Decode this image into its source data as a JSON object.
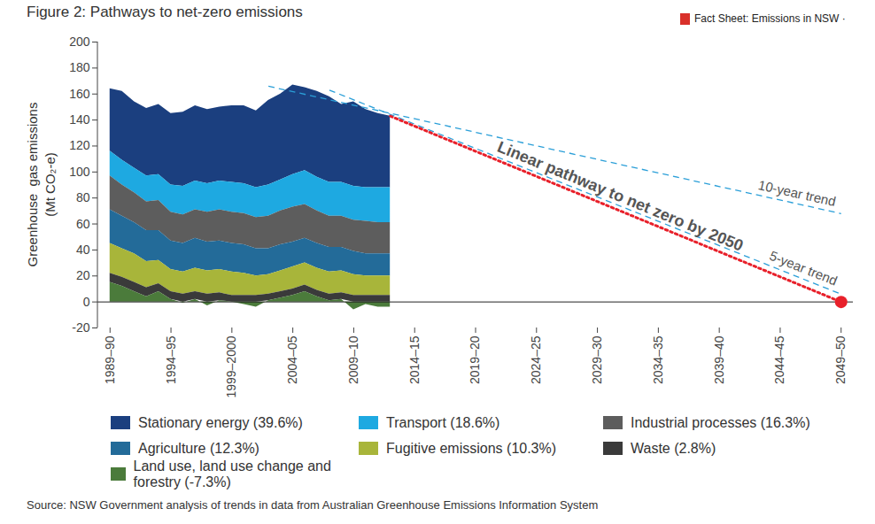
{
  "chart_data": {
    "type": "area",
    "title": "Figure 2: Pathways to net-zero emissions",
    "header": "Fact Sheet: Emissions in NSW ·",
    "source": "Source: NSW Government analysis of trends in data from Australian Greenhouse Emissions Information System",
    "y_label": [
      "Greenhouse  gas emissions",
      "(Mt CO₂-e)"
    ],
    "categories": [
      "1989–90",
      null,
      null,
      null,
      null,
      "1994–95",
      null,
      null,
      null,
      null,
      "1999–2000",
      null,
      null,
      null,
      null,
      "2004–05",
      null,
      null,
      null,
      null,
      "2009–10",
      null,
      null,
      null,
      null,
      "2014–15",
      null,
      null,
      null,
      null,
      "2019–20",
      null,
      null,
      null,
      null,
      "2024–25",
      null,
      null,
      null,
      null,
      "2029–30",
      null,
      null,
      null,
      null,
      "2034–35",
      null,
      null,
      null,
      null,
      "2039–40",
      null,
      null,
      null,
      null,
      "2044–45",
      null,
      null,
      null,
      null,
      "2049–50"
    ],
    "series": [
      {
        "name": "Stationary energy (39.6%)",
        "type": "area",
        "color": "#1b3f7f",
        "values": [
          48,
          53,
          51,
          52,
          54,
          55,
          57,
          58,
          57,
          57,
          59,
          60,
          59,
          65,
          66,
          69,
          64,
          66,
          66,
          60,
          65,
          60,
          57,
          55,
          null,
          null,
          null,
          null,
          null,
          null,
          null,
          null,
          null,
          null,
          null,
          null,
          null,
          null,
          null,
          null,
          null,
          null,
          null,
          null,
          null,
          null,
          null,
          null,
          null,
          null,
          null,
          null,
          null,
          null,
          null,
          null,
          null,
          null,
          null,
          null,
          null
        ]
      },
      {
        "name": "Transport (18.6%)",
        "type": "area",
        "color": "#1ea9e1",
        "values": [
          19,
          19,
          19,
          20,
          20,
          21,
          22,
          22,
          22,
          22,
          23,
          23,
          23,
          24,
          24,
          25,
          26,
          26,
          26,
          26,
          26,
          26,
          27,
          27,
          null,
          null,
          null,
          null,
          null,
          null,
          null,
          null,
          null,
          null,
          null,
          null,
          null,
          null,
          null,
          null,
          null,
          null,
          null,
          null,
          null,
          null,
          null,
          null,
          null,
          null,
          null,
          null,
          null,
          null,
          null,
          null,
          null,
          null,
          null,
          null,
          null
        ]
      },
      {
        "name": "Industrial processes (16.3%)",
        "type": "area",
        "color": "#5d5d5d",
        "values": [
          26,
          24,
          23,
          22,
          23,
          22,
          22,
          22,
          23,
          24,
          24,
          24,
          24,
          25,
          26,
          27,
          26,
          25,
          24,
          24,
          24,
          25,
          24,
          24,
          null,
          null,
          null,
          null,
          null,
          null,
          null,
          null,
          null,
          null,
          null,
          null,
          null,
          null,
          null,
          null,
          null,
          null,
          null,
          null,
          null,
          null,
          null,
          null,
          null,
          null,
          null,
          null,
          null,
          null,
          null,
          null,
          null,
          null,
          null,
          null,
          null
        ]
      },
      {
        "name": "Agriculture (12.3%)",
        "type": "area",
        "color": "#236b99",
        "values": [
          26,
          25,
          24,
          24,
          23,
          22,
          22,
          23,
          22,
          22,
          22,
          22,
          21,
          20,
          20,
          19,
          19,
          19,
          19,
          18,
          18,
          17,
          17,
          17,
          null,
          null,
          null,
          null,
          null,
          null,
          null,
          null,
          null,
          null,
          null,
          null,
          null,
          null,
          null,
          null,
          null,
          null,
          null,
          null,
          null,
          null,
          null,
          null,
          null,
          null,
          null,
          null,
          null,
          null,
          null,
          null,
          null,
          null,
          null,
          null,
          null
        ]
      },
      {
        "name": "Fugitive emissions (10.3%)",
        "type": "area",
        "color": "#a8b53a",
        "values": [
          23,
          22,
          22,
          20,
          18,
          17,
          17,
          18,
          18,
          18,
          18,
          17,
          15,
          15,
          16,
          17,
          17,
          17,
          17,
          17,
          16,
          15,
          15,
          15,
          null,
          null,
          null,
          null,
          null,
          null,
          null,
          null,
          null,
          null,
          null,
          null,
          null,
          null,
          null,
          null,
          null,
          null,
          null,
          null,
          null,
          null,
          null,
          null,
          null,
          null,
          null,
          null,
          null,
          null,
          null,
          null,
          null,
          null,
          null,
          null,
          null
        ]
      },
      {
        "name": "Waste (2.8%)",
        "type": "area",
        "color": "#3a3a3a",
        "values": [
          7,
          7,
          7,
          7,
          6,
          6,
          6,
          6,
          6,
          6,
          5,
          5,
          5,
          5,
          5,
          5,
          5,
          5,
          5,
          5,
          5,
          5,
          5,
          5,
          null,
          null,
          null,
          null,
          null,
          null,
          null,
          null,
          null,
          null,
          null,
          null,
          null,
          null,
          null,
          null,
          null,
          null,
          null,
          null,
          null,
          null,
          null,
          null,
          null,
          null,
          null,
          null,
          null,
          null,
          null,
          null,
          null,
          null,
          null,
          null,
          null
        ]
      },
      {
        "name": "Land use, land use change and forestry (-7.3%)",
        "type": "area",
        "color": "#4b7b3b",
        "values": [
          15,
          12,
          8,
          4,
          8,
          2,
          -1,
          2,
          -3,
          1,
          0,
          -2,
          -4,
          1,
          3,
          5,
          8,
          4,
          1,
          2,
          -6,
          -2,
          -4,
          -4,
          null,
          null,
          null,
          null,
          null,
          null,
          null,
          null,
          null,
          null,
          null,
          null,
          null,
          null,
          null,
          null,
          null,
          null,
          null,
          null,
          null,
          null,
          null,
          null,
          null,
          null,
          null,
          null,
          null,
          null,
          null,
          null,
          null,
          null,
          null,
          null,
          null
        ]
      },
      {
        "name": "10-year trend",
        "type": "line",
        "line_style": "dashed",
        "color": "#2b9fd8",
        "values": [
          null,
          null,
          null,
          null,
          null,
          null,
          null,
          null,
          null,
          null,
          null,
          null,
          null,
          166,
          null,
          null,
          null,
          null,
          null,
          null,
          null,
          null,
          null,
          null,
          null,
          null,
          null,
          null,
          null,
          null,
          null,
          null,
          null,
          null,
          null,
          null,
          null,
          null,
          null,
          null,
          null,
          null,
          null,
          null,
          null,
          null,
          null,
          null,
          null,
          null,
          null,
          null,
          null,
          null,
          null,
          null,
          null,
          null,
          null,
          null,
          68
        ]
      },
      {
        "name": "5-year trend",
        "type": "line",
        "line_style": "dashed",
        "color": "#2b9fd8",
        "values": [
          null,
          null,
          null,
          null,
          null,
          null,
          null,
          null,
          null,
          null,
          null,
          null,
          null,
          null,
          null,
          null,
          null,
          null,
          163,
          null,
          null,
          null,
          null,
          null,
          null,
          null,
          null,
          null,
          null,
          null,
          null,
          null,
          null,
          null,
          null,
          null,
          null,
          null,
          null,
          null,
          null,
          null,
          null,
          null,
          null,
          null,
          null,
          null,
          null,
          null,
          null,
          null,
          null,
          null,
          null,
          null,
          null,
          null,
          null,
          null,
          6
        ]
      },
      {
        "name": "Linear pathway to net zero by 2050",
        "type": "line",
        "line_style": "dotted",
        "marker": "circle",
        "color": "#e8202a",
        "values": [
          null,
          null,
          null,
          null,
          null,
          null,
          null,
          null,
          null,
          null,
          null,
          null,
          null,
          null,
          null,
          null,
          null,
          null,
          null,
          null,
          null,
          null,
          null,
          143,
          null,
          null,
          null,
          null,
          null,
          null,
          null,
          null,
          null,
          null,
          null,
          null,
          null,
          null,
          null,
          null,
          null,
          null,
          null,
          null,
          null,
          null,
          null,
          null,
          null,
          null,
          null,
          null,
          null,
          null,
          null,
          null,
          null,
          null,
          null,
          null,
          0
        ]
      }
    ],
    "ylim": [
      -20,
      200
    ],
    "yticks": [
      -20,
      0,
      20,
      40,
      60,
      80,
      100,
      120,
      140,
      160,
      180,
      200
    ],
    "stacked": true,
    "grid": false,
    "legend": "bottom"
  }
}
